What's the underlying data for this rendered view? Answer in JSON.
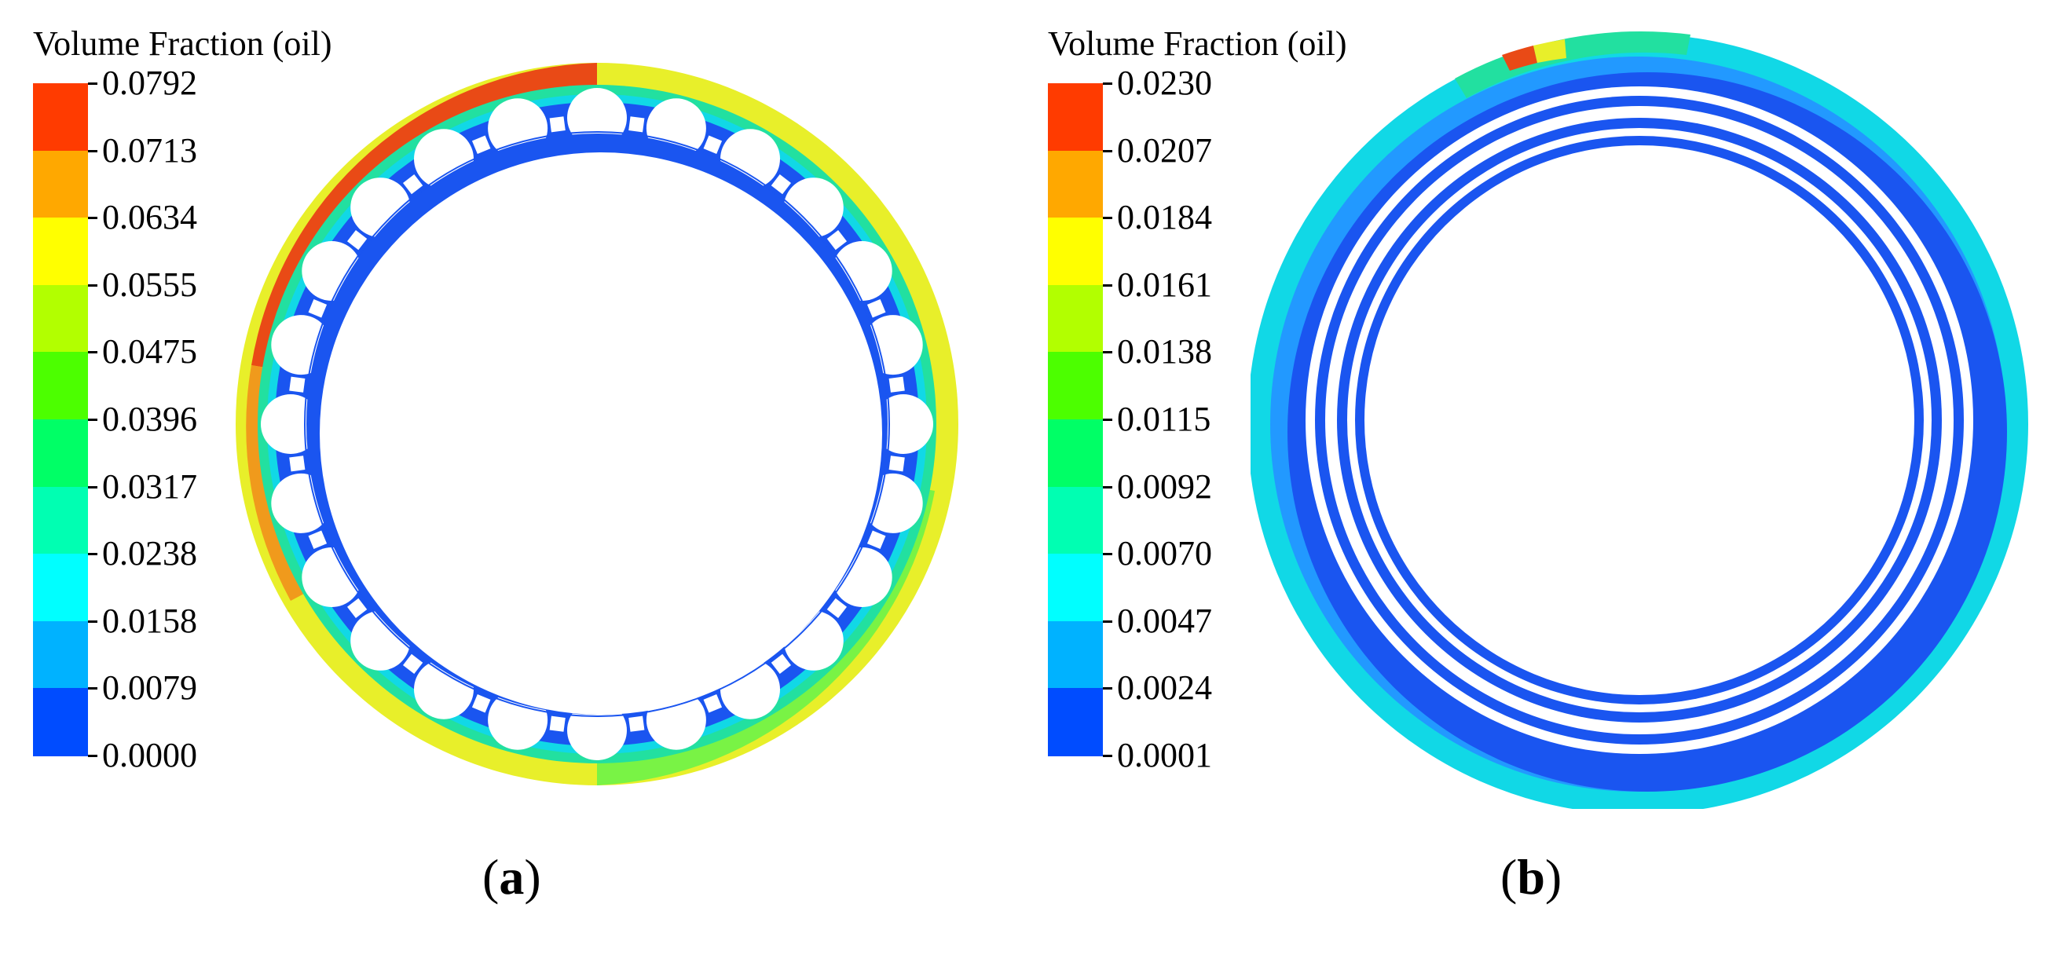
{
  "panels": [
    {
      "id": "a",
      "caption_open": "(",
      "caption_letter": "a",
      "caption_close": ")",
      "legend_title": "Volume Fraction (oil)",
      "legend_ticks": [
        "0.0792",
        "0.0713",
        "0.0634",
        "0.0555",
        "0.0475",
        "0.0396",
        "0.0317",
        "0.0238",
        "0.0158",
        "0.0079",
        "0.0000"
      ]
    },
    {
      "id": "b",
      "caption_open": "(",
      "caption_letter": "b",
      "caption_close": ")",
      "legend_title": "Volume Fraction (oil)",
      "legend_ticks": [
        "0.0230",
        "0.0207",
        "0.0184",
        "0.0161",
        "0.0138",
        "0.0115",
        "0.0092",
        "0.0070",
        "0.0047",
        "0.0024",
        "0.0001"
      ]
    }
  ],
  "colormap": [
    "#ff3b00",
    "#ffa800",
    "#ffff00",
    "#b2ff00",
    "#4cff00",
    "#00ff66",
    "#00ffb2",
    "#00ffff",
    "#00b2ff",
    "#004cff"
  ],
  "colors": {
    "blue": "#1a55f0",
    "light_blue": "#2299ff",
    "cyan": "#11d8e6",
    "teal": "#22e0a0",
    "green": "#5cf44c",
    "yellow": "#e8ef2a",
    "orange": "#f09a1c",
    "red": "#e94a16"
  }
}
